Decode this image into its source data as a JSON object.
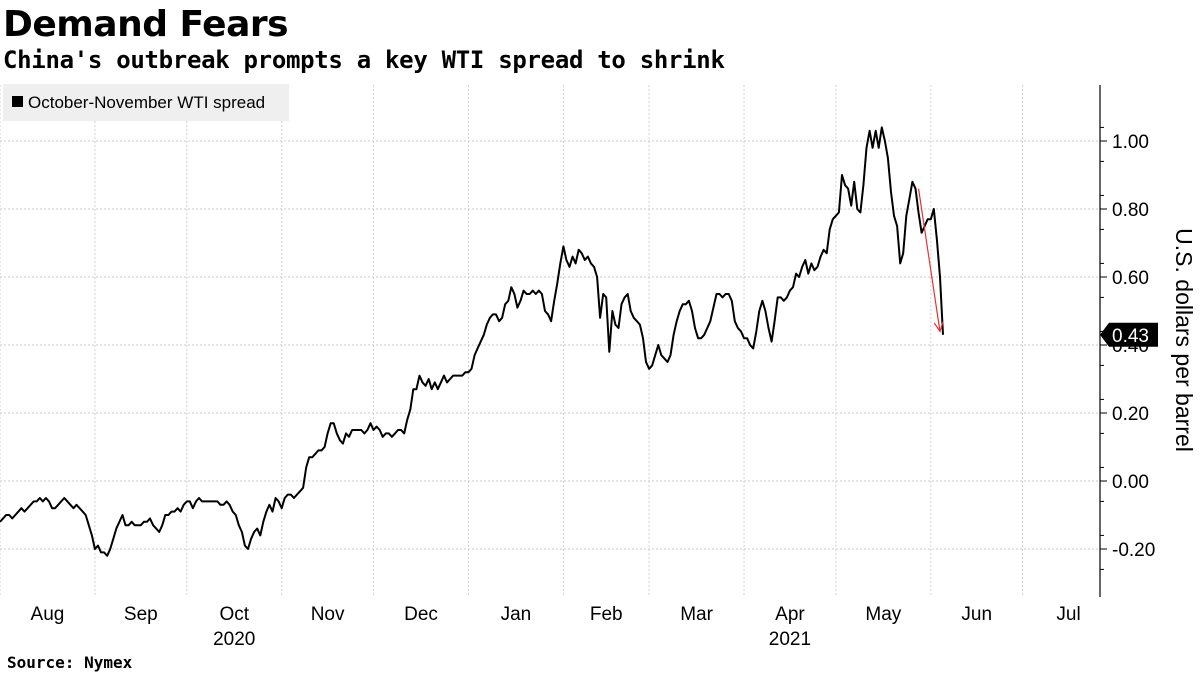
{
  "header": {
    "title": "Demand Fears",
    "subtitle": "China's outbreak prompts a key WTI spread to shrink"
  },
  "footer": {
    "source": "Source: Nymex"
  },
  "chart_data": {
    "type": "line",
    "title": "Demand Fears",
    "subtitle": "China's outbreak prompts a key WTI spread to shrink",
    "ylabel": "U.S. dollars per barrel",
    "ylim": [
      -0.38,
      1.16
    ],
    "yticks": [
      -0.2,
      0.0,
      0.2,
      0.4,
      0.6,
      0.8,
      1.0
    ],
    "ytick_labels": [
      "-0.20",
      "0.00",
      "0.20",
      "0.40",
      "0.60",
      "0.80",
      "1.00"
    ],
    "months": [
      "Aug",
      "Sep",
      "Oct",
      "Nov",
      "Dec",
      "Jan",
      "Feb",
      "Mar",
      "Apr",
      "May",
      "Jun",
      "Jul"
    ],
    "year_labels": [
      {
        "label": "2020",
        "month": "Oct"
      },
      {
        "label": "2021",
        "month": "Apr"
      }
    ],
    "x_range_days": [
      0,
      356
    ],
    "month_start_days": [
      0,
      31,
      61,
      92,
      122,
      153,
      184,
      212,
      243,
      273,
      304,
      334
    ],
    "legend": [
      "October-November WTI spread"
    ],
    "last_value": 0.43,
    "last_value_label": "0.43",
    "series": [
      {
        "name": "October-November WTI spread",
        "color": "#000000",
        "points": [
          [
            0,
            -0.12
          ],
          [
            1,
            -0.11
          ],
          [
            2,
            -0.1
          ],
          [
            3,
            -0.1
          ],
          [
            4,
            -0.11
          ],
          [
            5,
            -0.1
          ],
          [
            6,
            -0.09
          ],
          [
            7,
            -0.08
          ],
          [
            8,
            -0.09
          ],
          [
            9,
            -0.08
          ],
          [
            10,
            -0.07
          ],
          [
            11,
            -0.06
          ],
          [
            12,
            -0.06
          ],
          [
            13,
            -0.05
          ],
          [
            14,
            -0.06
          ],
          [
            15,
            -0.05
          ],
          [
            16,
            -0.06
          ],
          [
            17,
            -0.08
          ],
          [
            18,
            -0.08
          ],
          [
            19,
            -0.07
          ],
          [
            20,
            -0.06
          ],
          [
            21,
            -0.05
          ],
          [
            22,
            -0.06
          ],
          [
            23,
            -0.07
          ],
          [
            24,
            -0.08
          ],
          [
            25,
            -0.07
          ],
          [
            26,
            -0.08
          ],
          [
            27,
            -0.09
          ],
          [
            28,
            -0.1
          ],
          [
            29,
            -0.13
          ],
          [
            30,
            -0.16
          ],
          [
            31,
            -0.2
          ],
          [
            32,
            -0.19
          ],
          [
            33,
            -0.21
          ],
          [
            34,
            -0.21
          ],
          [
            35,
            -0.22
          ],
          [
            36,
            -0.2
          ],
          [
            37,
            -0.17
          ],
          [
            38,
            -0.14
          ],
          [
            39,
            -0.12
          ],
          [
            40,
            -0.1
          ],
          [
            41,
            -0.13
          ],
          [
            42,
            -0.13
          ],
          [
            43,
            -0.12
          ],
          [
            44,
            -0.13
          ],
          [
            45,
            -0.13
          ],
          [
            46,
            -0.13
          ],
          [
            47,
            -0.12
          ],
          [
            48,
            -0.12
          ],
          [
            49,
            -0.11
          ],
          [
            50,
            -0.13
          ],
          [
            51,
            -0.14
          ],
          [
            52,
            -0.15
          ],
          [
            53,
            -0.13
          ],
          [
            54,
            -0.1
          ],
          [
            55,
            -0.1
          ],
          [
            56,
            -0.09
          ],
          [
            57,
            -0.09
          ],
          [
            58,
            -0.08
          ],
          [
            59,
            -0.09
          ],
          [
            60,
            -0.07
          ],
          [
            61,
            -0.06
          ],
          [
            62,
            -0.06
          ],
          [
            63,
            -0.08
          ],
          [
            64,
            -0.06
          ],
          [
            65,
            -0.05
          ],
          [
            66,
            -0.06
          ],
          [
            67,
            -0.06
          ],
          [
            68,
            -0.06
          ],
          [
            69,
            -0.06
          ],
          [
            70,
            -0.06
          ],
          [
            71,
            -0.06
          ],
          [
            72,
            -0.07
          ],
          [
            73,
            -0.07
          ],
          [
            74,
            -0.06
          ],
          [
            75,
            -0.07
          ],
          [
            76,
            -0.09
          ],
          [
            77,
            -0.1
          ],
          [
            78,
            -0.13
          ],
          [
            79,
            -0.15
          ],
          [
            80,
            -0.19
          ],
          [
            81,
            -0.2
          ],
          [
            82,
            -0.17
          ],
          [
            83,
            -0.15
          ],
          [
            84,
            -0.14
          ],
          [
            85,
            -0.16
          ],
          [
            86,
            -0.12
          ],
          [
            87,
            -0.09
          ],
          [
            88,
            -0.07
          ],
          [
            89,
            -0.09
          ],
          [
            90,
            -0.05
          ],
          [
            91,
            -0.06
          ],
          [
            92,
            -0.08
          ],
          [
            93,
            -0.05
          ],
          [
            94,
            -0.04
          ],
          [
            95,
            -0.04
          ],
          [
            96,
            -0.05
          ],
          [
            97,
            -0.04
          ],
          [
            98,
            -0.03
          ],
          [
            99,
            -0.02
          ],
          [
            100,
            0.04
          ],
          [
            101,
            0.07
          ],
          [
            102,
            0.07
          ],
          [
            103,
            0.08
          ],
          [
            104,
            0.09
          ],
          [
            105,
            0.09
          ],
          [
            106,
            0.1
          ],
          [
            107,
            0.14
          ],
          [
            108,
            0.17
          ],
          [
            109,
            0.17
          ],
          [
            110,
            0.14
          ],
          [
            111,
            0.12
          ],
          [
            112,
            0.11
          ],
          [
            113,
            0.14
          ],
          [
            114,
            0.13
          ],
          [
            115,
            0.15
          ],
          [
            116,
            0.15
          ],
          [
            117,
            0.15
          ],
          [
            118,
            0.15
          ],
          [
            119,
            0.14
          ],
          [
            120,
            0.15
          ],
          [
            121,
            0.17
          ],
          [
            122,
            0.15
          ],
          [
            123,
            0.16
          ],
          [
            124,
            0.15
          ],
          [
            125,
            0.13
          ],
          [
            126,
            0.14
          ],
          [
            127,
            0.14
          ],
          [
            128,
            0.13
          ],
          [
            129,
            0.14
          ],
          [
            130,
            0.15
          ],
          [
            131,
            0.15
          ],
          [
            132,
            0.14
          ],
          [
            133,
            0.18
          ],
          [
            134,
            0.21
          ],
          [
            135,
            0.27
          ],
          [
            136,
            0.27
          ],
          [
            137,
            0.31
          ],
          [
            138,
            0.29
          ],
          [
            139,
            0.28
          ],
          [
            140,
            0.3
          ],
          [
            141,
            0.27
          ],
          [
            142,
            0.29
          ],
          [
            143,
            0.27
          ],
          [
            144,
            0.29
          ],
          [
            145,
            0.31
          ],
          [
            146,
            0.29
          ],
          [
            147,
            0.3
          ],
          [
            148,
            0.31
          ],
          [
            149,
            0.31
          ],
          [
            150,
            0.31
          ],
          [
            151,
            0.31
          ],
          [
            152,
            0.32
          ],
          [
            153,
            0.32
          ],
          [
            154,
            0.33
          ],
          [
            155,
            0.37
          ],
          [
            156,
            0.39
          ],
          [
            157,
            0.41
          ],
          [
            158,
            0.43
          ],
          [
            159,
            0.46
          ],
          [
            160,
            0.48
          ],
          [
            161,
            0.49
          ],
          [
            162,
            0.49
          ],
          [
            163,
            0.47
          ],
          [
            164,
            0.48
          ],
          [
            165,
            0.52
          ],
          [
            166,
            0.53
          ],
          [
            167,
            0.57
          ],
          [
            168,
            0.55
          ],
          [
            169,
            0.51
          ],
          [
            170,
            0.53
          ],
          [
            171,
            0.56
          ],
          [
            172,
            0.55
          ],
          [
            173,
            0.55
          ],
          [
            174,
            0.56
          ],
          [
            175,
            0.55
          ],
          [
            176,
            0.56
          ],
          [
            177,
            0.55
          ],
          [
            178,
            0.5
          ],
          [
            179,
            0.49
          ],
          [
            180,
            0.47
          ],
          [
            181,
            0.53
          ],
          [
            182,
            0.58
          ],
          [
            183,
            0.64
          ],
          [
            184,
            0.69
          ],
          [
            185,
            0.65
          ],
          [
            186,
            0.63
          ],
          [
            187,
            0.66
          ],
          [
            188,
            0.64
          ],
          [
            189,
            0.68
          ],
          [
            190,
            0.67
          ],
          [
            191,
            0.65
          ],
          [
            192,
            0.66
          ],
          [
            193,
            0.64
          ],
          [
            194,
            0.63
          ],
          [
            195,
            0.6
          ],
          [
            196,
            0.48
          ],
          [
            197,
            0.55
          ],
          [
            198,
            0.54
          ],
          [
            199,
            0.38
          ],
          [
            200,
            0.5
          ],
          [
            201,
            0.46
          ],
          [
            202,
            0.45
          ],
          [
            203,
            0.52
          ],
          [
            204,
            0.54
          ],
          [
            205,
            0.55
          ],
          [
            206,
            0.5
          ],
          [
            207,
            0.48
          ],
          [
            208,
            0.47
          ],
          [
            209,
            0.46
          ],
          [
            210,
            0.42
          ],
          [
            211,
            0.35
          ],
          [
            212,
            0.33
          ],
          [
            213,
            0.34
          ],
          [
            214,
            0.37
          ],
          [
            215,
            0.4
          ],
          [
            216,
            0.37
          ],
          [
            217,
            0.36
          ],
          [
            218,
            0.35
          ],
          [
            219,
            0.37
          ],
          [
            220,
            0.43
          ],
          [
            221,
            0.47
          ],
          [
            222,
            0.5
          ],
          [
            223,
            0.52
          ],
          [
            224,
            0.52
          ],
          [
            225,
            0.53
          ],
          [
            226,
            0.5
          ],
          [
            227,
            0.45
          ],
          [
            228,
            0.42
          ],
          [
            229,
            0.42
          ],
          [
            230,
            0.43
          ],
          [
            231,
            0.45
          ],
          [
            232,
            0.47
          ],
          [
            233,
            0.51
          ],
          [
            234,
            0.55
          ],
          [
            235,
            0.55
          ],
          [
            236,
            0.54
          ],
          [
            237,
            0.55
          ],
          [
            238,
            0.55
          ],
          [
            239,
            0.53
          ],
          [
            240,
            0.47
          ],
          [
            241,
            0.45
          ],
          [
            242,
            0.44
          ],
          [
            243,
            0.42
          ],
          [
            244,
            0.42
          ],
          [
            245,
            0.4
          ],
          [
            246,
            0.39
          ],
          [
            247,
            0.44
          ],
          [
            248,
            0.5
          ],
          [
            249,
            0.53
          ],
          [
            250,
            0.5
          ],
          [
            251,
            0.45
          ],
          [
            252,
            0.41
          ],
          [
            253,
            0.47
          ],
          [
            254,
            0.54
          ],
          [
            255,
            0.54
          ],
          [
            256,
            0.53
          ],
          [
            257,
            0.54
          ],
          [
            258,
            0.56
          ],
          [
            259,
            0.57
          ],
          [
            260,
            0.61
          ],
          [
            261,
            0.6
          ],
          [
            262,
            0.63
          ],
          [
            263,
            0.65
          ],
          [
            264,
            0.61
          ],
          [
            265,
            0.64
          ],
          [
            266,
            0.62
          ],
          [
            267,
            0.63
          ],
          [
            268,
            0.66
          ],
          [
            269,
            0.68
          ],
          [
            270,
            0.67
          ],
          [
            271,
            0.74
          ],
          [
            272,
            0.77
          ],
          [
            273,
            0.78
          ],
          [
            274,
            0.79
          ],
          [
            275,
            0.9
          ],
          [
            276,
            0.87
          ],
          [
            277,
            0.86
          ],
          [
            278,
            0.81
          ],
          [
            279,
            0.88
          ],
          [
            280,
            0.8
          ],
          [
            281,
            0.79
          ],
          [
            282,
            0.87
          ],
          [
            283,
            0.98
          ],
          [
            284,
            1.03
          ],
          [
            285,
            0.98
          ],
          [
            286,
            1.03
          ],
          [
            287,
            0.98
          ],
          [
            288,
            1.04
          ],
          [
            289,
            1.0
          ],
          [
            290,
            0.95
          ],
          [
            291,
            0.85
          ],
          [
            292,
            0.78
          ],
          [
            293,
            0.75
          ],
          [
            294,
            0.64
          ],
          [
            295,
            0.67
          ],
          [
            296,
            0.78
          ],
          [
            297,
            0.83
          ],
          [
            298,
            0.88
          ],
          [
            299,
            0.86
          ],
          [
            300,
            0.79
          ],
          [
            301,
            0.73
          ],
          [
            302,
            0.75
          ],
          [
            303,
            0.77
          ],
          [
            304,
            0.77
          ],
          [
            305,
            0.8
          ],
          [
            306,
            0.71
          ],
          [
            307,
            0.6
          ],
          [
            308,
            0.43
          ]
        ]
      }
    ],
    "annotations": [
      {
        "type": "arrow",
        "color": "#e8312f",
        "from": [
          300,
          0.86
        ],
        "to": [
          307,
          0.44
        ]
      }
    ]
  }
}
